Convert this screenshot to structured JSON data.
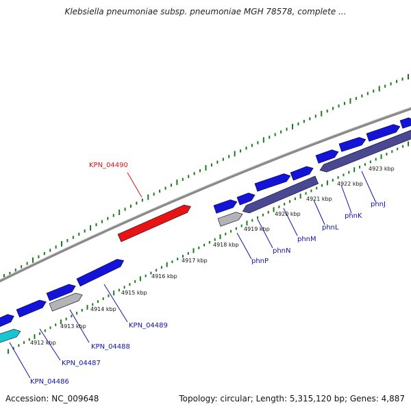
{
  "title": "Klebsiella pneumoniae subsp. pneumoniae MGH 78578, complete ...",
  "footer": {
    "accession": "Accession: NC_009648",
    "summary": "Topology: circular; Length: 5,315,120 bp; Genes: 4,887"
  },
  "colors": {
    "backbone": "#8a8a8a",
    "gene_blue": "#1414d8",
    "operon": "#4a4890",
    "selected": "#e81414",
    "grey": "#b4b4b4",
    "teal": "#17c6cf",
    "tick_green": "#1b7a1b",
    "label_blue": "#1010b0",
    "label_red": "#e01010"
  },
  "coordinate_labels": [
    "4912 kbp",
    "4913 kbp",
    "4914 kbp",
    "4915 kbp",
    "4916 kbp",
    "4917 kbp",
    "4918 kbp",
    "4919 kbp",
    "4920 kbp",
    "4921 kbp",
    "4922 kbp",
    "4923 kbp"
  ],
  "gene_labels": [
    {
      "text": "KPN_04486",
      "color": "label_blue"
    },
    {
      "text": "KPN_04487",
      "color": "label_blue"
    },
    {
      "text": "KPN_04488",
      "color": "label_blue"
    },
    {
      "text": "KPN_04489",
      "color": "label_blue"
    },
    {
      "text": "KPN_04490",
      "color": "label_red"
    },
    {
      "text": "phnP",
      "color": "label_blue"
    },
    {
      "text": "phnN",
      "color": "label_blue"
    },
    {
      "text": "phnM",
      "color": "label_blue"
    },
    {
      "text": "phnL",
      "color": "label_blue"
    },
    {
      "text": "phnK",
      "color": "label_blue"
    },
    {
      "text": "phnJ",
      "color": "label_blue"
    }
  ]
}
